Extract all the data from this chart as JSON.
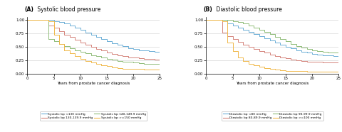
{
  "panel_A_title_bold": "(A)",
  "panel_A_title_rest": " Systolic blood pressure",
  "panel_B_title_bold": "(B)",
  "panel_B_title_rest": " Diastolic blood pressure",
  "xlabel": "Years from prostate cancer diagnosis",
  "xlim": [
    0,
    25
  ],
  "ylim": [
    0,
    1.05
  ],
  "yticks": [
    0.0,
    0.25,
    0.5,
    0.75,
    1.0
  ],
  "xticks": [
    0,
    5,
    10,
    15,
    20,
    25
  ],
  "legend_A": [
    "Systolic bp <130 mmHg",
    "Systolic bp 130-139.9 mmHg",
    "Systolic bp 140-149.9 mmHg",
    "Systolic bp >=150 mmHg"
  ],
  "legend_B": [
    "Diastolic bp <80 mmHg",
    "Diastolic bp 80-89.9 mmHg",
    "Diastolic bp 90-99.9 mmHg",
    "Diastolic bp >=100 mmHg"
  ],
  "colors_A": [
    "#6baed6",
    "#d4837a",
    "#8fbc78",
    "#f0b84a"
  ],
  "colors_B": [
    "#6baed6",
    "#d4837a",
    "#8fbc78",
    "#f0b84a"
  ],
  "background": "#ffffff",
  "grid_color": "#cccccc",
  "A_curves": {
    "blue": {
      "x": [
        0,
        5,
        5,
        6,
        6,
        7,
        7,
        8,
        8,
        9,
        9,
        10,
        10,
        11,
        11,
        12,
        12,
        13,
        13,
        14,
        14,
        15,
        15,
        16,
        16,
        17,
        17,
        18,
        18,
        19,
        19,
        20,
        20,
        21,
        21,
        22,
        22,
        23,
        23,
        24,
        24,
        25,
        25
      ],
      "y": [
        1.0,
        1.0,
        0.98,
        0.98,
        0.96,
        0.96,
        0.93,
        0.93,
        0.9,
        0.9,
        0.86,
        0.86,
        0.82,
        0.82,
        0.77,
        0.77,
        0.73,
        0.73,
        0.69,
        0.69,
        0.65,
        0.65,
        0.61,
        0.61,
        0.57,
        0.57,
        0.54,
        0.54,
        0.51,
        0.51,
        0.48,
        0.48,
        0.46,
        0.46,
        0.44,
        0.44,
        0.43,
        0.43,
        0.42,
        0.42,
        0.41,
        0.41,
        0.41
      ]
    },
    "pink": {
      "x": [
        0,
        4,
        4,
        5,
        5,
        6,
        6,
        7,
        7,
        8,
        8,
        9,
        9,
        10,
        10,
        11,
        11,
        12,
        12,
        13,
        13,
        14,
        14,
        15,
        15,
        16,
        16,
        17,
        17,
        18,
        18,
        19,
        19,
        20,
        20,
        21,
        21,
        22,
        22,
        23,
        23,
        24,
        24,
        25,
        25
      ],
      "y": [
        1.0,
        1.0,
        0.9,
        0.9,
        0.85,
        0.85,
        0.79,
        0.79,
        0.73,
        0.73,
        0.68,
        0.68,
        0.63,
        0.63,
        0.58,
        0.58,
        0.54,
        0.54,
        0.5,
        0.5,
        0.46,
        0.46,
        0.43,
        0.43,
        0.4,
        0.4,
        0.37,
        0.37,
        0.35,
        0.35,
        0.33,
        0.33,
        0.31,
        0.31,
        0.3,
        0.3,
        0.29,
        0.29,
        0.28,
        0.28,
        0.28,
        0.28,
        0.27,
        0.27,
        0.27
      ]
    },
    "green": {
      "x": [
        0,
        4,
        4,
        5,
        5,
        6,
        6,
        7,
        7,
        8,
        8,
        9,
        9,
        10,
        10,
        11,
        11,
        12,
        12,
        13,
        13,
        14,
        14,
        15,
        15,
        16,
        16,
        17,
        17,
        18,
        18,
        19,
        19,
        20,
        20,
        21,
        21,
        22,
        22,
        23,
        23,
        24,
        24,
        25,
        25
      ],
      "y": [
        1.0,
        1.0,
        0.65,
        0.65,
        0.6,
        0.6,
        0.56,
        0.56,
        0.52,
        0.52,
        0.48,
        0.48,
        0.44,
        0.44,
        0.41,
        0.41,
        0.38,
        0.38,
        0.35,
        0.35,
        0.33,
        0.33,
        0.3,
        0.3,
        0.28,
        0.28,
        0.26,
        0.26,
        0.24,
        0.24,
        0.23,
        0.23,
        0.22,
        0.22,
        0.21,
        0.21,
        0.2,
        0.2,
        0.19,
        0.19,
        0.19,
        0.19,
        0.19,
        0.19,
        0.19
      ]
    },
    "orange": {
      "x": [
        0,
        4,
        4,
        5,
        5,
        6,
        6,
        7,
        7,
        8,
        8,
        9,
        9,
        10,
        10,
        11,
        11,
        12,
        12,
        13,
        13,
        14,
        14,
        15,
        15,
        16,
        16,
        17,
        17,
        18,
        18,
        19,
        19,
        20,
        20,
        21,
        21,
        22,
        22,
        23,
        23,
        24,
        24,
        25,
        25
      ],
      "y": [
        1.0,
        1.0,
        0.97,
        0.97,
        0.72,
        0.72,
        0.56,
        0.56,
        0.44,
        0.44,
        0.38,
        0.38,
        0.33,
        0.33,
        0.28,
        0.28,
        0.24,
        0.24,
        0.21,
        0.21,
        0.18,
        0.18,
        0.16,
        0.16,
        0.14,
        0.14,
        0.12,
        0.12,
        0.11,
        0.11,
        0.1,
        0.1,
        0.1,
        0.1,
        0.09,
        0.09,
        0.09,
        0.09,
        0.08,
        0.08,
        0.08,
        0.08,
        0.08,
        0.08,
        0.08
      ]
    }
  },
  "B_curves": {
    "blue": {
      "x": [
        0,
        4,
        4,
        5,
        5,
        6,
        6,
        7,
        7,
        8,
        8,
        9,
        9,
        10,
        10,
        11,
        11,
        12,
        12,
        13,
        13,
        14,
        14,
        15,
        15,
        16,
        16,
        17,
        17,
        18,
        18,
        19,
        19,
        20,
        20,
        21,
        21,
        22,
        22,
        23,
        23,
        24,
        24,
        25,
        25
      ],
      "y": [
        1.0,
        1.0,
        0.93,
        0.93,
        0.89,
        0.89,
        0.85,
        0.85,
        0.82,
        0.82,
        0.78,
        0.78,
        0.74,
        0.74,
        0.7,
        0.7,
        0.66,
        0.66,
        0.62,
        0.62,
        0.58,
        0.58,
        0.54,
        0.54,
        0.5,
        0.5,
        0.47,
        0.47,
        0.44,
        0.44,
        0.41,
        0.41,
        0.39,
        0.39,
        0.37,
        0.37,
        0.36,
        0.36,
        0.35,
        0.35,
        0.34,
        0.34,
        0.33,
        0.33,
        0.33
      ]
    },
    "pink": {
      "x": [
        0,
        3,
        3,
        4,
        4,
        5,
        5,
        6,
        6,
        7,
        7,
        8,
        8,
        9,
        9,
        10,
        10,
        11,
        11,
        12,
        12,
        13,
        13,
        14,
        14,
        15,
        15,
        16,
        16,
        17,
        17,
        18,
        18,
        19,
        19,
        20,
        20,
        21,
        21,
        22,
        22,
        23,
        23,
        24,
        24,
        25,
        25
      ],
      "y": [
        1.0,
        1.0,
        0.76,
        0.76,
        0.7,
        0.7,
        0.64,
        0.64,
        0.59,
        0.59,
        0.54,
        0.54,
        0.5,
        0.5,
        0.46,
        0.46,
        0.42,
        0.42,
        0.39,
        0.39,
        0.36,
        0.36,
        0.33,
        0.33,
        0.31,
        0.31,
        0.29,
        0.29,
        0.27,
        0.27,
        0.25,
        0.25,
        0.24,
        0.24,
        0.23,
        0.23,
        0.22,
        0.22,
        0.22,
        0.22,
        0.21,
        0.21,
        0.21,
        0.21,
        0.21,
        0.21,
        0.21
      ]
    },
    "green": {
      "x": [
        0,
        5,
        5,
        6,
        6,
        7,
        7,
        8,
        8,
        9,
        9,
        10,
        10,
        11,
        11,
        12,
        12,
        13,
        13,
        14,
        14,
        15,
        15,
        16,
        16,
        17,
        17,
        18,
        18,
        19,
        19,
        20,
        20,
        21,
        21,
        22,
        22,
        23,
        23,
        24,
        24,
        25,
        25
      ],
      "y": [
        1.0,
        1.0,
        0.98,
        0.98,
        0.96,
        0.96,
        0.93,
        0.93,
        0.9,
        0.9,
        0.86,
        0.86,
        0.82,
        0.82,
        0.78,
        0.78,
        0.74,
        0.74,
        0.69,
        0.69,
        0.65,
        0.65,
        0.6,
        0.6,
        0.56,
        0.56,
        0.52,
        0.52,
        0.49,
        0.49,
        0.46,
        0.46,
        0.44,
        0.44,
        0.42,
        0.42,
        0.41,
        0.41,
        0.4,
        0.4,
        0.39,
        0.39,
        0.39
      ]
    },
    "orange": {
      "x": [
        0,
        3,
        3,
        4,
        4,
        5,
        5,
        6,
        6,
        7,
        7,
        8,
        8,
        9,
        9,
        10,
        10,
        11,
        11,
        12,
        12,
        13,
        13,
        14,
        14,
        15,
        15,
        16,
        16,
        17,
        17,
        18,
        18,
        19,
        19,
        20,
        20,
        21,
        21,
        22,
        22,
        23,
        23,
        24,
        24,
        25,
        25
      ],
      "y": [
        1.0,
        1.0,
        0.97,
        0.97,
        0.58,
        0.58,
        0.42,
        0.42,
        0.3,
        0.3,
        0.24,
        0.24,
        0.19,
        0.19,
        0.16,
        0.16,
        0.13,
        0.13,
        0.11,
        0.11,
        0.09,
        0.09,
        0.08,
        0.08,
        0.07,
        0.07,
        0.06,
        0.06,
        0.06,
        0.06,
        0.05,
        0.05,
        0.05,
        0.05,
        0.04,
        0.04,
        0.04,
        0.04,
        0.04,
        0.04,
        0.04,
        0.04,
        0.04,
        0.04,
        0.04,
        0.04,
        0.04
      ]
    }
  }
}
